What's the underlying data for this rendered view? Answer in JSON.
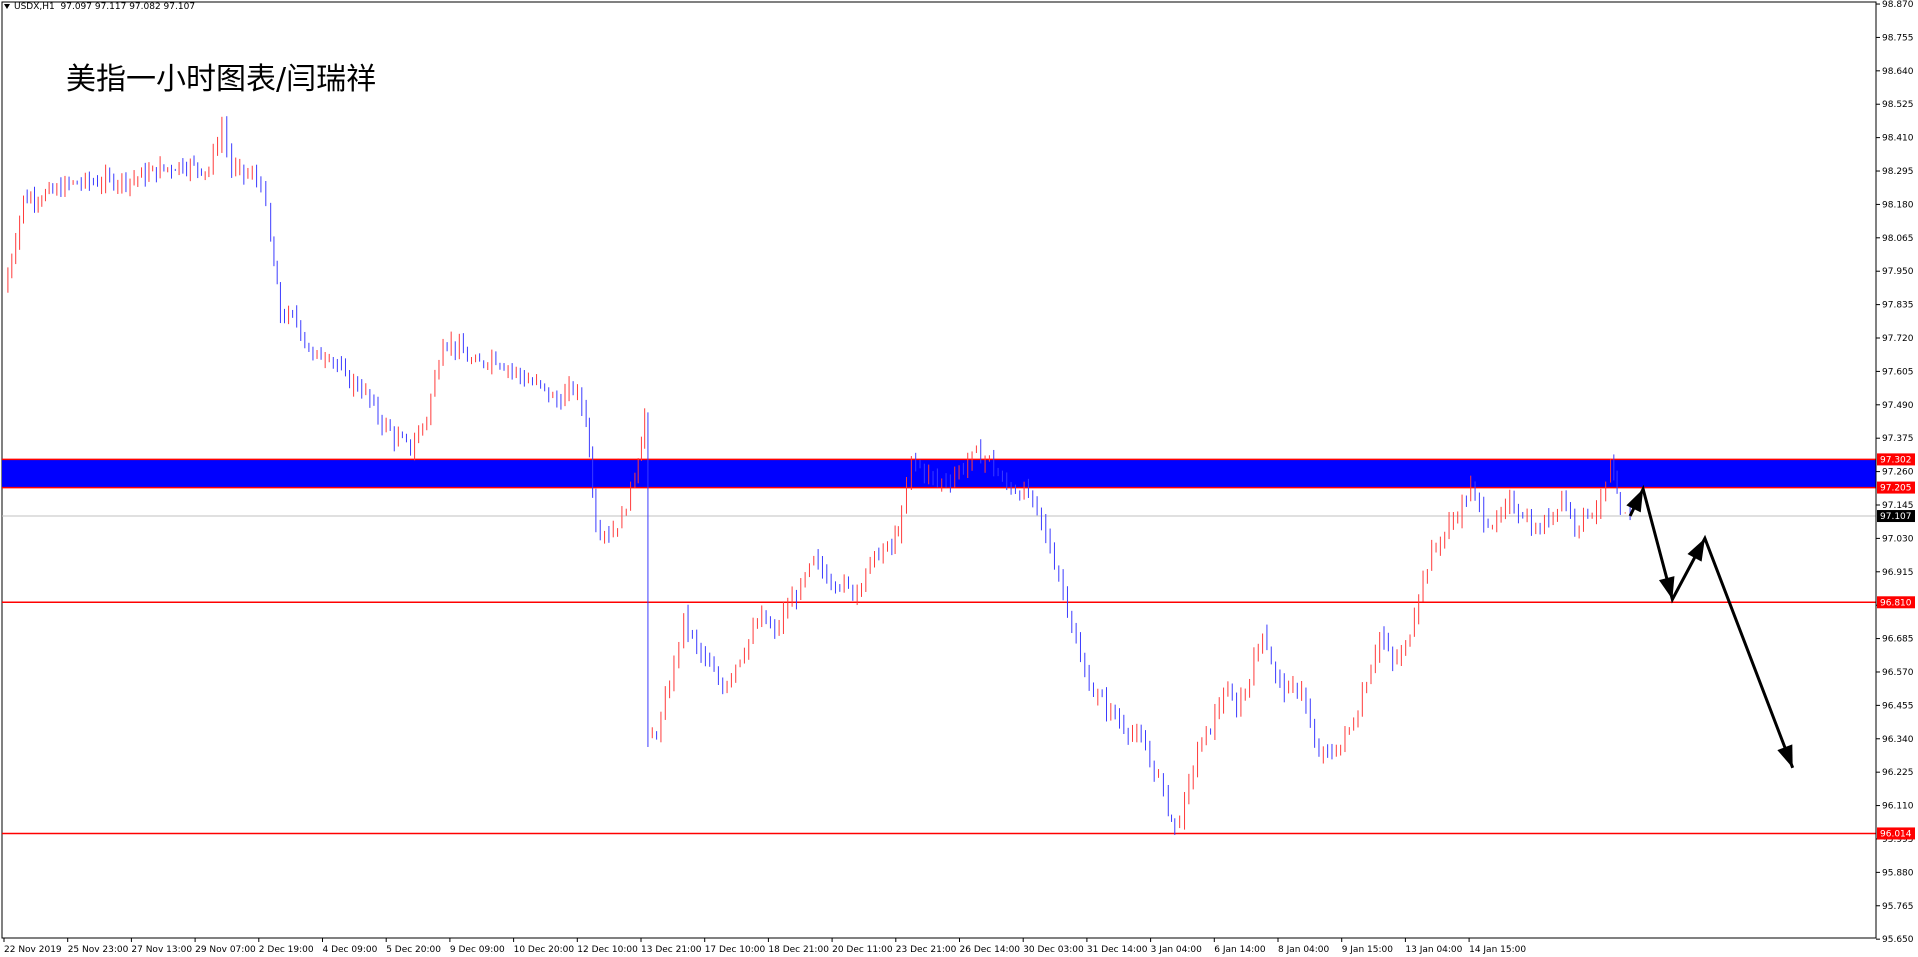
{
  "header": {
    "symbol": "USDX,H1",
    "ohlc": "97.097 97.117 97.082 97.107"
  },
  "overlay_title": "美指一小时图表/闫瑞祥",
  "colors": {
    "up_candle": "#ff3b3b",
    "down_candle": "#3b3bff",
    "zone_fill": "#0000ff",
    "level_line": "#ff0000",
    "current_price_line": "#c0c0c0",
    "arrow": "#000000"
  },
  "chart_data": {
    "type": "candlestick",
    "title": "",
    "xlabel": "",
    "ylabel": "",
    "ylim": [
      95.654,
      98.877
    ],
    "yticks": [
      "98.870",
      "98.755",
      "98.640",
      "98.525",
      "98.410",
      "98.295",
      "98.180",
      "98.065",
      "97.950",
      "97.835",
      "97.720",
      "97.605",
      "97.490",
      "97.375",
      "97.260",
      "97.145",
      "97.030",
      "96.915",
      "96.800",
      "96.685",
      "96.570",
      "96.455",
      "96.340",
      "96.225",
      "96.110",
      "95.995",
      "95.880",
      "95.765",
      "95.650"
    ],
    "xticks": [
      "22 Nov 2019",
      "25 Nov 23:00",
      "27 Nov 13:00",
      "29 Nov 07:00",
      "2 Dec 19:00",
      "4 Dec 09:00",
      "5 Dec 20:00",
      "9 Dec 09:00",
      "10 Dec 20:00",
      "12 Dec 10:00",
      "13 Dec 21:00",
      "17 Dec 10:00",
      "18 Dec 21:00",
      "20 Dec 11:00",
      "23 Dec 21:00",
      "26 Dec 14:00",
      "30 Dec 03:00",
      "31 Dec 14:00",
      "3 Jan 04:00",
      "6 Jan 14:00",
      "8 Jan 04:00",
      "9 Jan 15:00",
      "13 Jan 04:00",
      "14 Jan 15:00"
    ],
    "grid": false,
    "price_path": [
      {
        "x": 0,
        "y": 97.88
      },
      {
        "x": 0.6,
        "y": 98.2
      },
      {
        "x": 1.5,
        "y": 98.22
      },
      {
        "x": 2.0,
        "y": 98.25
      },
      {
        "x": 3.0,
        "y": 98.26
      },
      {
        "x": 4.0,
        "y": 98.27
      },
      {
        "x": 4.8,
        "y": 98.3
      },
      {
        "x": 5.5,
        "y": 98.32
      },
      {
        "x": 6.3,
        "y": 98.3
      },
      {
        "x": 6.7,
        "y": 98.45
      },
      {
        "x": 7.0,
        "y": 98.3
      },
      {
        "x": 7.5,
        "y": 98.28
      },
      {
        "x": 7.9,
        "y": 98.26
      },
      {
        "x": 8.2,
        "y": 98.05
      },
      {
        "x": 8.5,
        "y": 97.8
      },
      {
        "x": 9.0,
        "y": 97.78
      },
      {
        "x": 9.5,
        "y": 97.65
      },
      {
        "x": 10.0,
        "y": 97.67
      },
      {
        "x": 10.5,
        "y": 97.58
      },
      {
        "x": 11.0,
        "y": 97.55
      },
      {
        "x": 11.5,
        "y": 97.45
      },
      {
        "x": 12.0,
        "y": 97.38
      },
      {
        "x": 12.5,
        "y": 97.34
      },
      {
        "x": 13.0,
        "y": 97.45
      },
      {
        "x": 13.5,
        "y": 97.72
      },
      {
        "x": 14.0,
        "y": 97.68
      },
      {
        "x": 14.5,
        "y": 97.62
      },
      {
        "x": 15.0,
        "y": 97.66
      },
      {
        "x": 15.5,
        "y": 97.62
      },
      {
        "x": 16.0,
        "y": 97.58
      },
      {
        "x": 16.5,
        "y": 97.55
      },
      {
        "x": 17.0,
        "y": 97.5
      },
      {
        "x": 17.5,
        "y": 97.55
      },
      {
        "x": 17.9,
        "y": 97.45
      },
      {
        "x": 18.2,
        "y": 97.08
      },
      {
        "x": 18.6,
        "y": 97.05
      },
      {
        "x": 19.0,
        "y": 97.1
      },
      {
        "x": 19.4,
        "y": 97.25
      },
      {
        "x": 19.7,
        "y": 97.45
      },
      {
        "x": 19.8,
        "y": 96.32
      },
      {
        "x": 20.2,
        "y": 96.4
      },
      {
        "x": 20.6,
        "y": 96.6
      },
      {
        "x": 20.9,
        "y": 96.75
      },
      {
        "x": 21.3,
        "y": 96.65
      },
      {
        "x": 21.7,
        "y": 96.58
      },
      {
        "x": 22.1,
        "y": 96.52
      },
      {
        "x": 22.5,
        "y": 96.6
      },
      {
        "x": 22.9,
        "y": 96.68
      },
      {
        "x": 23.3,
        "y": 96.76
      },
      {
        "x": 23.7,
        "y": 96.7
      },
      {
        "x": 24.1,
        "y": 96.8
      },
      {
        "x": 24.5,
        "y": 96.86
      },
      {
        "x": 24.9,
        "y": 96.95
      },
      {
        "x": 25.3,
        "y": 96.9
      },
      {
        "x": 25.7,
        "y": 96.88
      },
      {
        "x": 26.1,
        "y": 96.84
      },
      {
        "x": 26.5,
        "y": 96.92
      },
      {
        "x": 26.9,
        "y": 96.98
      },
      {
        "x": 27.3,
        "y": 97.0
      },
      {
        "x": 27.6,
        "y": 97.1
      },
      {
        "x": 27.9,
        "y": 97.3
      },
      {
        "x": 28.3,
        "y": 97.26
      },
      {
        "x": 28.7,
        "y": 97.22
      },
      {
        "x": 29.1,
        "y": 97.24
      },
      {
        "x": 29.5,
        "y": 97.28
      },
      {
        "x": 29.9,
        "y": 97.32
      },
      {
        "x": 30.3,
        "y": 97.3
      },
      {
        "x": 30.7,
        "y": 97.22
      },
      {
        "x": 31.1,
        "y": 97.2
      },
      {
        "x": 31.5,
        "y": 97.18
      },
      {
        "x": 31.9,
        "y": 97.08
      },
      {
        "x": 32.3,
        "y": 96.95
      },
      {
        "x": 32.7,
        "y": 96.8
      },
      {
        "x": 33.1,
        "y": 96.6
      },
      {
        "x": 33.5,
        "y": 96.5
      },
      {
        "x": 33.9,
        "y": 96.45
      },
      {
        "x": 34.3,
        "y": 96.4
      },
      {
        "x": 34.7,
        "y": 96.36
      },
      {
        "x": 35.1,
        "y": 96.3
      },
      {
        "x": 35.5,
        "y": 96.2
      },
      {
        "x": 35.8,
        "y": 96.1
      },
      {
        "x": 36.0,
        "y": 96.03
      },
      {
        "x": 36.3,
        "y": 96.12
      },
      {
        "x": 36.7,
        "y": 96.3
      },
      {
        "x": 37.1,
        "y": 96.38
      },
      {
        "x": 37.5,
        "y": 96.5
      },
      {
        "x": 37.9,
        "y": 96.45
      },
      {
        "x": 38.3,
        "y": 96.55
      },
      {
        "x": 38.7,
        "y": 96.72
      },
      {
        "x": 39.1,
        "y": 96.55
      },
      {
        "x": 39.5,
        "y": 96.5
      },
      {
        "x": 39.9,
        "y": 96.52
      },
      {
        "x": 40.3,
        "y": 96.3
      },
      {
        "x": 40.7,
        "y": 96.28
      },
      {
        "x": 41.1,
        "y": 96.32
      },
      {
        "x": 41.5,
        "y": 96.4
      },
      {
        "x": 41.9,
        "y": 96.55
      },
      {
        "x": 42.3,
        "y": 96.7
      },
      {
        "x": 42.7,
        "y": 96.6
      },
      {
        "x": 43.1,
        "y": 96.65
      },
      {
        "x": 43.5,
        "y": 96.85
      },
      {
        "x": 43.9,
        "y": 96.98
      },
      {
        "x": 44.3,
        "y": 97.05
      },
      {
        "x": 44.7,
        "y": 97.12
      },
      {
        "x": 45.1,
        "y": 97.2
      },
      {
        "x": 45.5,
        "y": 97.1
      },
      {
        "x": 45.9,
        "y": 97.08
      },
      {
        "x": 46.3,
        "y": 97.15
      },
      {
        "x": 46.7,
        "y": 97.12
      },
      {
        "x": 47.1,
        "y": 97.05
      },
      {
        "x": 47.5,
        "y": 97.1
      },
      {
        "x": 47.9,
        "y": 97.18
      },
      {
        "x": 48.3,
        "y": 97.08
      },
      {
        "x": 48.7,
        "y": 97.12
      },
      {
        "x": 49.1,
        "y": 97.15
      },
      {
        "x": 49.4,
        "y": 97.28
      },
      {
        "x": 49.7,
        "y": 97.1
      },
      {
        "x": 50.0,
        "y": 97.107
      }
    ],
    "levels": [
      {
        "value": 97.302,
        "label": "97.302"
      },
      {
        "value": 97.205,
        "label": "97.205"
      },
      {
        "value": 96.81,
        "label": "96.810"
      },
      {
        "value": 96.014,
        "label": "96.014"
      }
    ],
    "resistance_zone": [
      97.205,
      97.302
    ],
    "current_price": {
      "value": 97.107,
      "label": "97.107"
    },
    "projection_path": [
      {
        "x": 50.0,
        "y": 97.107
      },
      {
        "x": 50.4,
        "y": 97.2
      },
      {
        "x": 51.3,
        "y": 96.82
      },
      {
        "x": 52.3,
        "y": 97.03
      },
      {
        "x": 55.0,
        "y": 96.24
      }
    ]
  }
}
